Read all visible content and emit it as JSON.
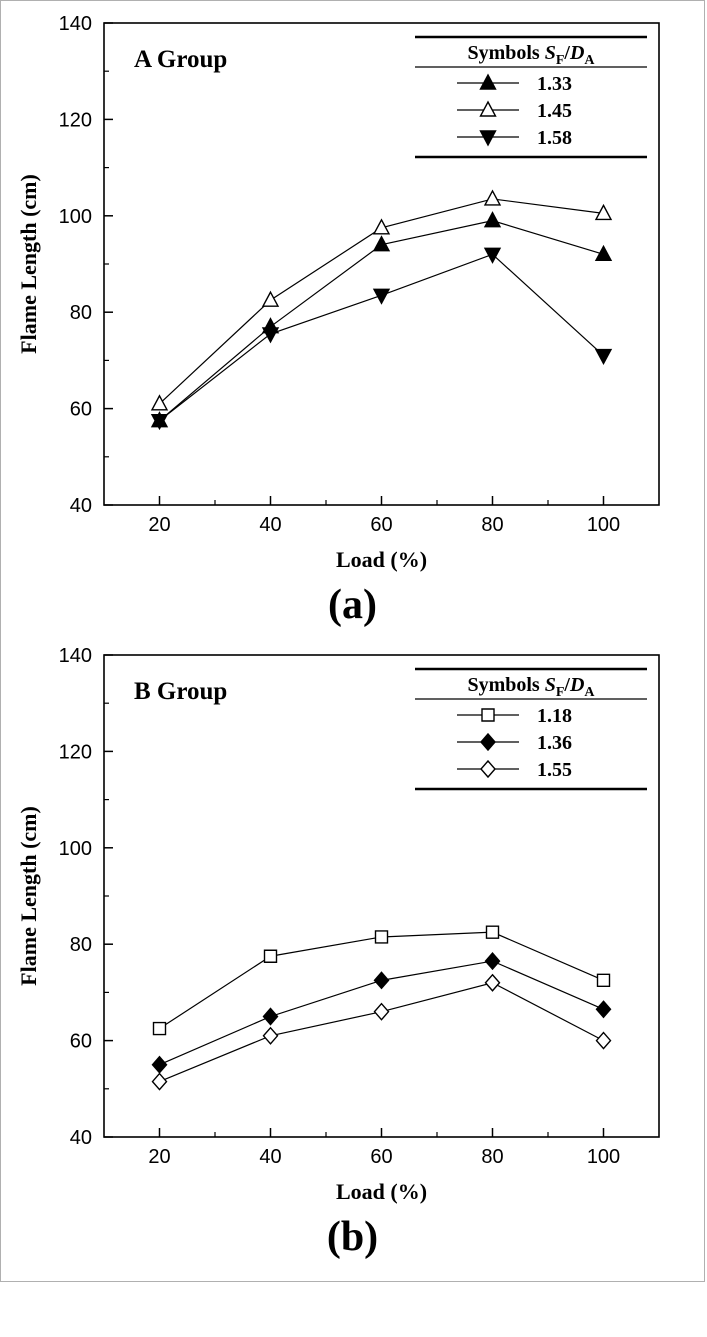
{
  "page": {
    "background": "#ffffff",
    "ink": "#000000"
  },
  "figures": [
    {
      "caption": "(a)"
    },
    {
      "caption": "(b)"
    }
  ],
  "chart_data": [
    {
      "type": "line",
      "title": "A Group",
      "xlabel": "Load (%)",
      "ylabel": "Flame Length (cm)",
      "xlim": [
        10,
        110
      ],
      "ylim": [
        40,
        140
      ],
      "xticks": [
        20,
        40,
        60,
        80,
        100
      ],
      "yticks": [
        40,
        60,
        80,
        100,
        120,
        140
      ],
      "x_minor": [
        30,
        50,
        70,
        90
      ],
      "y_minor": [
        50,
        70,
        90,
        110,
        130
      ],
      "grid": false,
      "color": "#000000",
      "legend": {
        "position": "top-right",
        "header_symbols": "Symbols",
        "header_var1": "S",
        "header_sub1": "F",
        "header_slash": "/",
        "header_var2": "D",
        "header_sub2": "A"
      },
      "x": [
        20,
        40,
        60,
        80,
        100
      ],
      "series": [
        {
          "name": "1.33",
          "marker": "triangle-up",
          "fill": "filled",
          "values": [
            57.5,
            77,
            94,
            99,
            92
          ]
        },
        {
          "name": "1.45",
          "marker": "triangle-up",
          "fill": "open",
          "values": [
            61,
            82.5,
            97.5,
            103.5,
            100.5
          ]
        },
        {
          "name": "1.58",
          "marker": "triangle-down",
          "fill": "filled",
          "values": [
            57.5,
            75.5,
            83.5,
            92,
            71
          ]
        }
      ]
    },
    {
      "type": "line",
      "title": "B Group",
      "xlabel": "Load (%)",
      "ylabel": "Flame Length (cm)",
      "xlim": [
        10,
        110
      ],
      "ylim": [
        40,
        140
      ],
      "xticks": [
        20,
        40,
        60,
        80,
        100
      ],
      "yticks": [
        40,
        60,
        80,
        100,
        120,
        140
      ],
      "x_minor": [
        30,
        50,
        70,
        90
      ],
      "y_minor": [
        50,
        70,
        90,
        110,
        130
      ],
      "grid": false,
      "color": "#000000",
      "legend": {
        "position": "top-right",
        "header_symbols": "Symbols",
        "header_var1": "S",
        "header_sub1": "F",
        "header_slash": "/",
        "header_var2": "D",
        "header_sub2": "A"
      },
      "x": [
        20,
        40,
        60,
        80,
        100
      ],
      "series": [
        {
          "name": "1.18",
          "marker": "square",
          "fill": "open",
          "values": [
            62.5,
            77.5,
            81.5,
            82.5,
            72.5
          ]
        },
        {
          "name": "1.36",
          "marker": "diamond",
          "fill": "filled",
          "values": [
            55,
            65,
            72.5,
            76.5,
            66.5
          ]
        },
        {
          "name": "1.55",
          "marker": "diamond",
          "fill": "open",
          "values": [
            51.5,
            61,
            66,
            72,
            60
          ]
        }
      ]
    }
  ]
}
